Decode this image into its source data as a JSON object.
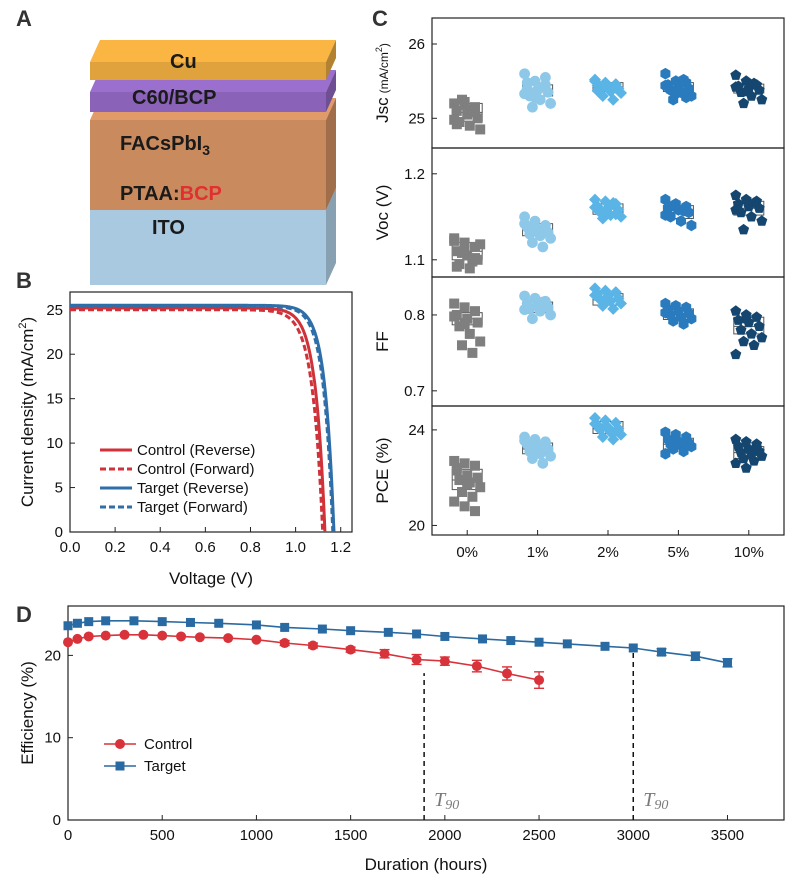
{
  "panel_letters": {
    "a": "A",
    "b": "B",
    "c": "C",
    "d": "D"
  },
  "stack": {
    "layers": [
      {
        "label": "Cu",
        "color": "#e0a23c"
      },
      {
        "label": "C60/BCP",
        "color": "#8a63b8"
      },
      {
        "label": "FACsPbI",
        "sub": "3",
        "color": "#c98a5e"
      },
      {
        "label": "PTAA:",
        "label2": "BCP",
        "label2_color": "#e03030",
        "color": "#3a8fa8"
      },
      {
        "label": "ITO",
        "color": "#a9c9e0"
      }
    ]
  },
  "chart_data": [
    {
      "id": "B",
      "type": "line",
      "xlabel": "Voltage (V)",
      "ylabel": "Current density (mA/cm",
      "ylabel_sup": "2",
      "ylabel_end": ")",
      "xlim": [
        0,
        1.25
      ],
      "ylim": [
        0,
        27
      ],
      "xticks": [
        "0.0",
        "0.2",
        "0.4",
        "0.6",
        "0.8",
        "1.0",
        "1.2"
      ],
      "xtick_values": [
        0,
        0.2,
        0.4,
        0.6,
        0.8,
        1.0,
        1.2
      ],
      "yticks": [
        "0",
        "5",
        "10",
        "15",
        "20",
        "25"
      ],
      "ytick_values": [
        0,
        5,
        10,
        15,
        20,
        25
      ],
      "series": [
        {
          "name": "Control (Reverse)",
          "color": "#d0323a",
          "dash": false,
          "jsc": 25.2,
          "voc": 1.13,
          "n": 1.62
        },
        {
          "name": "Control (Forward)",
          "color": "#d0323a",
          "dash": true,
          "jsc": 25.0,
          "voc": 1.12,
          "n": 1.75
        },
        {
          "name": "Target  (Reverse)",
          "color": "#2f6ea8",
          "dash": false,
          "jsc": 25.5,
          "voc": 1.17,
          "n": 1.55
        },
        {
          "name": "Target  (Forward)",
          "color": "#2f6ea8",
          "dash": true,
          "jsc": 25.4,
          "voc": 1.165,
          "n": 1.6
        }
      ]
    },
    {
      "id": "C",
      "type": "box-scatter",
      "categories": [
        "0%",
        "1%",
        "2%",
        "5%",
        "10%"
      ],
      "colors": [
        "#7f7f7f",
        "#8ec8e8",
        "#5ab4e6",
        "#2a7bbd",
        "#14466f"
      ],
      "markers": [
        "square",
        "circle",
        "diamond",
        "hexagon",
        "pentagon"
      ],
      "panels": [
        {
          "ylabel": "Jsc",
          "ylabel_unit": "(mA/cm",
          "ylabel_sup": "2",
          "ylabel_end": ")",
          "ylim": [
            24.6,
            26.35
          ],
          "yticks": [
            "25",
            "26"
          ],
          "ytick_values": [
            25,
            26
          ],
          "medians": [
            25.08,
            25.38,
            25.42,
            25.42,
            25.4
          ],
          "box": [
            [
              24.96,
              25.2
            ],
            [
              25.3,
              25.45
            ],
            [
              25.36,
              25.48
            ],
            [
              25.36,
              25.48
            ],
            [
              25.34,
              25.46
            ]
          ],
          "points": [
            [
              25.2,
              25.22,
              25.15,
              25.1,
              25.05,
              25.0,
              24.95,
              24.9,
              24.85,
              25.25,
              25.12,
              24.98,
              25.18,
              25.08,
              24.92
            ],
            [
              25.6,
              25.5,
              25.45,
              25.4,
              25.38,
              25.35,
              25.3,
              25.25,
              25.2,
              25.15,
              25.42,
              25.33,
              25.28,
              25.55,
              25.48
            ],
            [
              25.5,
              25.48,
              25.46,
              25.44,
              25.42,
              25.4,
              25.38,
              25.36,
              25.34,
              25.3,
              25.25,
              25.52,
              25.45,
              25.41,
              25.37
            ],
            [
              25.6,
              25.5,
              25.48,
              25.45,
              25.42,
              25.4,
              25.38,
              25.35,
              25.3,
              25.25,
              25.52,
              25.44,
              25.33,
              25.28
            ],
            [
              25.58,
              25.5,
              25.45,
              25.43,
              25.4,
              25.38,
              25.35,
              25.3,
              25.25,
              25.2,
              25.47,
              25.42,
              25.36
            ]
          ]
        },
        {
          "ylabel": "Voc (V)",
          "ylim": [
            1.08,
            1.23
          ],
          "yticks": [
            "1.1",
            "1.2"
          ],
          "ytick_values": [
            1.1,
            1.2
          ],
          "medians": [
            1.11,
            1.135,
            1.16,
            1.155,
            1.16
          ],
          "box": [
            [
              1.1,
              1.12
            ],
            [
              1.128,
              1.142
            ],
            [
              1.153,
              1.165
            ],
            [
              1.148,
              1.163
            ],
            [
              1.152,
              1.168
            ]
          ],
          "points": [
            [
              1.125,
              1.12,
              1.115,
              1.11,
              1.105,
              1.1,
              1.095,
              1.09,
              1.118,
              1.108,
              1.098,
              1.122,
              1.112,
              1.102,
              1.092
            ],
            [
              1.15,
              1.145,
              1.14,
              1.138,
              1.135,
              1.132,
              1.13,
              1.128,
              1.125,
              1.12,
              1.115,
              1.142,
              1.136
            ],
            [
              1.17,
              1.168,
              1.165,
              1.162,
              1.16,
              1.158,
              1.155,
              1.152,
              1.15,
              1.148,
              1.166,
              1.161,
              1.157,
              1.153
            ],
            [
              1.17,
              1.165,
              1.162,
              1.16,
              1.158,
              1.155,
              1.15,
              1.145,
              1.14,
              1.163,
              1.157,
              1.152
            ],
            [
              1.175,
              1.17,
              1.168,
              1.165,
              1.162,
              1.16,
              1.155,
              1.15,
              1.145,
              1.135,
              1.166,
              1.158
            ]
          ]
        },
        {
          "ylabel": "FF",
          "ylim": [
            0.68,
            0.85
          ],
          "yticks": [
            "0.7",
            "0.8"
          ],
          "ytick_values": [
            0.7,
            0.8
          ],
          "medians": [
            0.795,
            0.81,
            0.82,
            0.8,
            0.785
          ],
          "box": [
            [
              0.787,
              0.803
            ],
            [
              0.803,
              0.817
            ],
            [
              0.813,
              0.828
            ],
            [
              0.794,
              0.808
            ],
            [
              0.775,
              0.797
            ]
          ],
          "points": [
            [
              0.815,
              0.81,
              0.805,
              0.8,
              0.795,
              0.79,
              0.785,
              0.775,
              0.765,
              0.76,
              0.75,
              0.798,
              0.788
            ],
            [
              0.825,
              0.822,
              0.818,
              0.815,
              0.812,
              0.81,
              0.808,
              0.805,
              0.8,
              0.795,
              0.817,
              0.807
            ],
            [
              0.835,
              0.832,
              0.83,
              0.828,
              0.825,
              0.822,
              0.82,
              0.818,
              0.815,
              0.812,
              0.808,
              0.826,
              0.816
            ],
            [
              0.815,
              0.812,
              0.81,
              0.808,
              0.805,
              0.802,
              0.8,
              0.797,
              0.795,
              0.792,
              0.788,
              0.803
            ],
            [
              0.805,
              0.8,
              0.797,
              0.793,
              0.79,
              0.785,
              0.78,
              0.775,
              0.77,
              0.765,
              0.76,
              0.748,
              0.795
            ]
          ]
        },
        {
          "ylabel": "PCE (%)",
          "ylim": [
            19.6,
            25.0
          ],
          "yticks": [
            "20",
            "24"
          ],
          "ytick_values": [
            20,
            24
          ],
          "medians": [
            21.9,
            23.2,
            24.05,
            23.4,
            23.05
          ],
          "box": [
            [
              21.5,
              22.35
            ],
            [
              23.0,
              23.45
            ],
            [
              23.85,
              24.35
            ],
            [
              23.2,
              23.65
            ],
            [
              22.8,
              23.3
            ]
          ],
          "points": [
            [
              22.7,
              22.6,
              22.5,
              22.3,
              22.1,
              22.0,
              21.9,
              21.8,
              21.6,
              21.4,
              21.2,
              21.0,
              20.8,
              20.6,
              22.4,
              21.7
            ],
            [
              23.7,
              23.6,
              23.5,
              23.4,
              23.3,
              23.2,
              23.1,
              23.0,
              22.9,
              22.8,
              22.6,
              23.55,
              23.25
            ],
            [
              24.5,
              24.4,
              24.3,
              24.2,
              24.1,
              24.05,
              24.0,
              23.9,
              23.8,
              23.7,
              23.6,
              24.25,
              24.15,
              23.95
            ],
            [
              23.9,
              23.8,
              23.7,
              23.6,
              23.5,
              23.45,
              23.4,
              23.35,
              23.3,
              23.2,
              23.1,
              23.0,
              23.55
            ],
            [
              23.6,
              23.5,
              23.4,
              23.3,
              23.2,
              23.1,
              23.05,
              23.0,
              22.9,
              22.8,
              22.7,
              22.6,
              22.4,
              23.25
            ]
          ]
        }
      ]
    },
    {
      "id": "D",
      "type": "line",
      "xlabel": "Duration (hours)",
      "ylabel": "Efficiency (%)",
      "xlim": [
        0,
        3800
      ],
      "ylim": [
        0,
        26
      ],
      "xticks": [
        "0",
        "500",
        "1000",
        "1500",
        "2000",
        "2500",
        "3000",
        "3500"
      ],
      "xtick_values": [
        0,
        500,
        1000,
        1500,
        2000,
        2500,
        3000,
        3500
      ],
      "yticks": [
        "0",
        "10",
        "20"
      ],
      "ytick_values": [
        0,
        10,
        20
      ],
      "series": [
        {
          "name": "Control",
          "color": "#d8323a",
          "marker": "circle",
          "x": [
            0,
            50,
            110,
            200,
            300,
            400,
            500,
            600,
            700,
            850,
            1000,
            1150,
            1300,
            1500,
            1680,
            1850,
            2000,
            2170,
            2330,
            2500
          ],
          "y": [
            21.6,
            22.0,
            22.3,
            22.4,
            22.5,
            22.5,
            22.4,
            22.3,
            22.2,
            22.1,
            21.9,
            21.5,
            21.2,
            20.7,
            20.2,
            19.5,
            19.3,
            18.7,
            17.8,
            17.0
          ],
          "err": [
            0,
            0,
            0,
            0,
            0,
            0,
            0,
            0,
            0,
            0,
            0,
            0.3,
            0.3,
            0.3,
            0.5,
            0.6,
            0.5,
            0.7,
            0.8,
            1.0
          ]
        },
        {
          "name": "Target",
          "color": "#2a6aa2",
          "marker": "square",
          "x": [
            0,
            50,
            110,
            200,
            350,
            500,
            650,
            800,
            1000,
            1150,
            1350,
            1500,
            1700,
            1850,
            2000,
            2200,
            2350,
            2500,
            2650,
            2850,
            3000,
            3150,
            3330,
            3500
          ],
          "y": [
            23.6,
            23.9,
            24.1,
            24.2,
            24.2,
            24.1,
            24.0,
            23.9,
            23.7,
            23.4,
            23.2,
            23.0,
            22.8,
            22.6,
            22.3,
            22.0,
            21.8,
            21.6,
            21.4,
            21.1,
            20.9,
            20.4,
            19.9,
            19.1
          ],
          "err": [
            0,
            0,
            0,
            0,
            0,
            0,
            0,
            0,
            0,
            0,
            0,
            0,
            0,
            0,
            0,
            0,
            0,
            0,
            0,
            0,
            0,
            0.4,
            0.5,
            0.5
          ]
        }
      ],
      "t90_lines": [
        {
          "x": 1890,
          "label": "T",
          "sub": "90"
        },
        {
          "x": 3000,
          "label": "T",
          "sub": "90"
        }
      ]
    }
  ]
}
